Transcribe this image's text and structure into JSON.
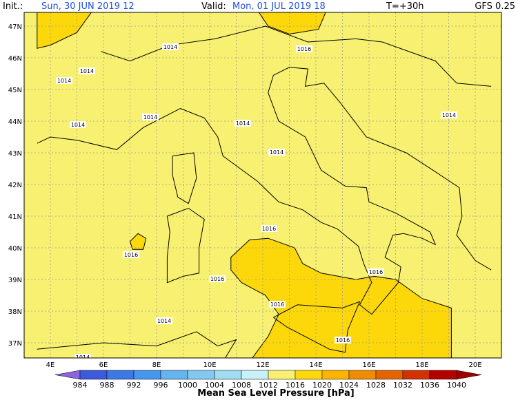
{
  "header": {
    "init_label": "Init.:",
    "init": "Sun, 30 JUN 2019  12",
    "valid_label": "Valid:",
    "valid": "Mon, 01 JUL 2019  18",
    "lead": "T=+30h",
    "model": "GFS 0.25"
  },
  "map": {
    "lat_labels": [
      "47N",
      "46N",
      "45N",
      "44N",
      "43N",
      "42N",
      "41N",
      "40N",
      "39N",
      "38N",
      "37N"
    ],
    "lon_labels": [
      "4E",
      "6E",
      "8E",
      "10E",
      "12E",
      "14E",
      "16E",
      "18E",
      "20E"
    ],
    "contour_labels": [
      "1014",
      "1016",
      "1014",
      "1014",
      "1014",
      "1014",
      "1014",
      "1014",
      "1014",
      "1016",
      "1016",
      "1016",
      "1016",
      "1016",
      "1014",
      "1016",
      "1014"
    ]
  },
  "colorbar": {
    "title": "Mean Sea Level Pressure [hPa]",
    "ticks": [
      984,
      988,
      992,
      996,
      1000,
      1004,
      1008,
      1012,
      1016,
      1020,
      1024,
      1028,
      1032,
      1036,
      1040
    ],
    "colors": [
      "#8c64dc",
      "#3c5adc",
      "#3c78e6",
      "#4696f0",
      "#64b4f0",
      "#82c8f0",
      "#a0dcf0",
      "#c8f0f8",
      "#f8f070",
      "#fcd80a",
      "#fcb400",
      "#f08c00",
      "#e66400",
      "#d23200",
      "#b40000",
      "#a00000"
    ]
  }
}
